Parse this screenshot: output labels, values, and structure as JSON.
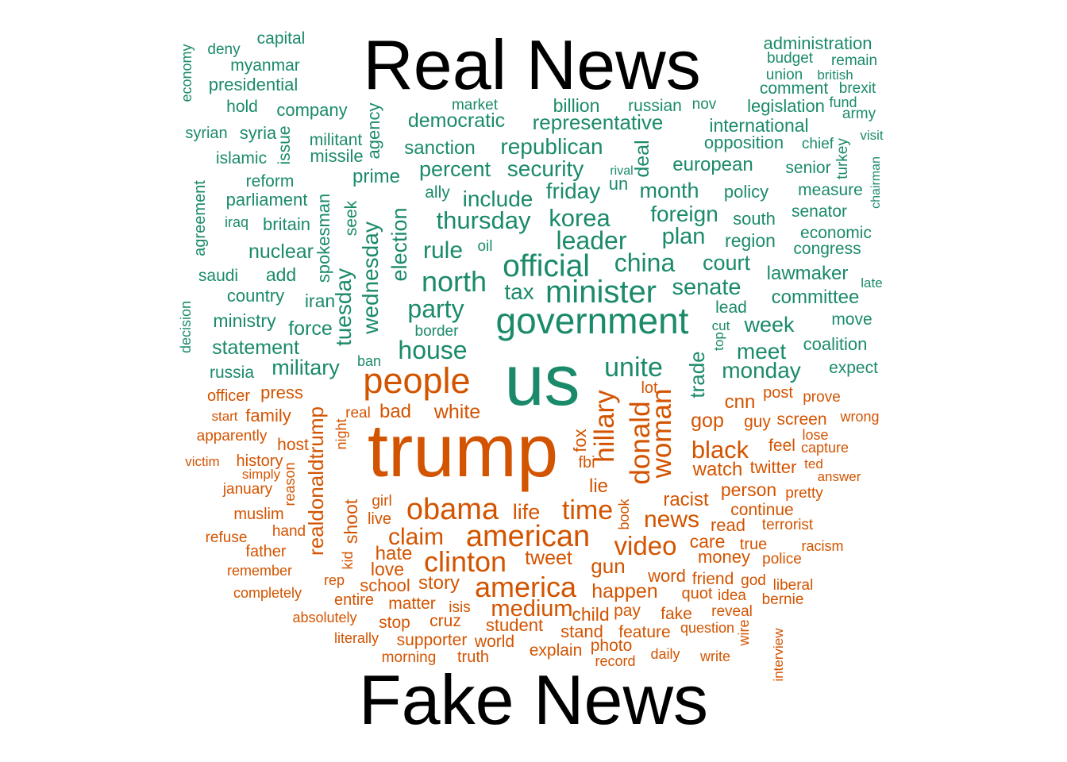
{
  "colors": {
    "real": "#1b8a6b",
    "fake": "#d35400",
    "title": "#000000"
  },
  "chart_data": {
    "type": "wordcloud",
    "title_top": "Real News",
    "title_bottom": "Fake News",
    "groups": [
      {
        "name": "real",
        "words": [
          "administration",
          "budget",
          "remain",
          "union",
          "british",
          "comment",
          "brexit",
          "fund",
          "army",
          "visit",
          "chief",
          "turkey",
          "chairman",
          "capital",
          "deny",
          "economy",
          "myanmar",
          "presidential",
          "hold",
          "company",
          "market",
          "billion",
          "russian",
          "nov",
          "legislation",
          "syrian",
          "syria",
          "issue",
          "agency",
          "democratic",
          "representative",
          "international",
          "militant",
          "opposition",
          "islamic",
          "missile",
          "sanction",
          "republican",
          "deal",
          "senior",
          "european",
          "reform",
          "prime",
          "percent",
          "security",
          "rival",
          "un",
          "measure",
          "agreement",
          "parliament",
          "ally",
          "include",
          "friday",
          "month",
          "policy",
          "senator",
          "iraq",
          "britain",
          "seek",
          "thursday",
          "korea",
          "foreign",
          "south",
          "economic",
          "oil",
          "leader",
          "plan",
          "region",
          "congress",
          "nuclear",
          "spokesman",
          "rule",
          "election",
          "official",
          "china",
          "court",
          "saudi",
          "add",
          "wednesday",
          "north",
          "lawmaker",
          "late",
          "country",
          "tax",
          "minister",
          "senate",
          "committee",
          "iran",
          "tuesday",
          "party",
          "lead",
          "decision",
          "ministry",
          "force",
          "border",
          "government",
          "cut",
          "week",
          "move",
          "top",
          "statement",
          "house",
          "meet",
          "coalition",
          "russia",
          "military",
          "ban",
          "us",
          "unite",
          "monday",
          "expect",
          "trade"
        ]
      },
      {
        "name": "fake",
        "words": [
          "trump",
          "people",
          "hillary",
          "donald",
          "woman",
          "officer",
          "press",
          "lot",
          "post",
          "prove",
          "start",
          "family",
          "real",
          "bad",
          "white",
          "cnn",
          "guy",
          "screen",
          "wrong",
          "apparently",
          "realdonaldtrump",
          "fox",
          "gop",
          "lose",
          "host",
          "night",
          "black",
          "feel",
          "capture",
          "victim",
          "history",
          "fbi",
          "twitter",
          "ted",
          "simply",
          "reason",
          "watch",
          "answer",
          "january",
          "lie",
          "person",
          "pretty",
          "girl",
          "shoot",
          "obama",
          "racist",
          "muslim",
          "book",
          "continue",
          "hand",
          "life",
          "time",
          "news",
          "terrorist",
          "refuse",
          "live",
          "read",
          "claim",
          "american",
          "care",
          "true",
          "racism",
          "father",
          "hate",
          "video",
          "money",
          "police",
          "kid",
          "tweet",
          "remember",
          "love",
          "clinton",
          "gun",
          "word",
          "friend",
          "god",
          "rep",
          "story",
          "liberal",
          "completely",
          "school",
          "america",
          "happen",
          "quot",
          "idea",
          "bernie",
          "entire",
          "matter",
          "isis",
          "medium",
          "child",
          "pay",
          "fake",
          "reveal",
          "absolutely",
          "stop",
          "cruz",
          "student",
          "question",
          "wire",
          "literally",
          "stand",
          "feature",
          "supporter",
          "world",
          "photo",
          "interview",
          "explain",
          "morning",
          "truth",
          "daily",
          "write",
          "record"
        ]
      }
    ]
  }
}
